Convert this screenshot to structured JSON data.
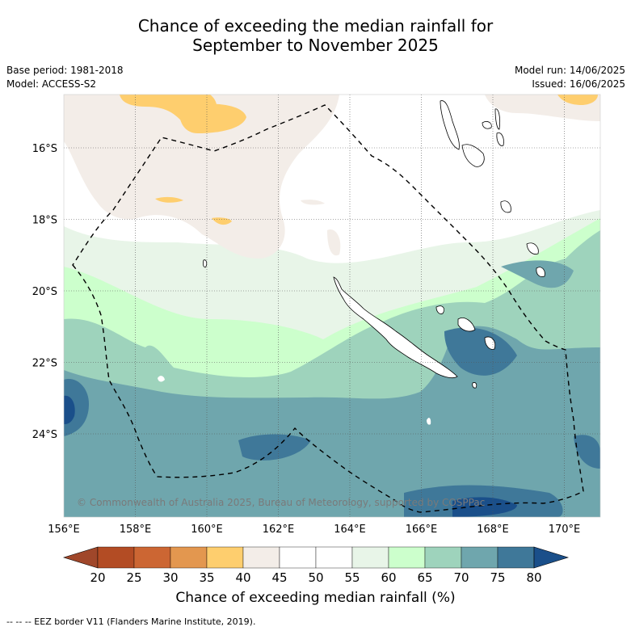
{
  "title_line1": "Chance of exceeding the median rainfall for",
  "title_line2": "September to November 2025",
  "base_period": "Base period: 1981-2018",
  "model": "Model: ACCESS-S2",
  "model_run": "Model run: 14/06/2025",
  "issued": "Issued: 16/06/2025",
  "copyright": "© Commonwealth of Australia 2025, Bureau of Meteorology, supported by COSPPac",
  "colorbar_label": "Chance of exceeding median rainfall (%)",
  "footnote": "--  --  -- EEZ border V11 (Flanders Marine Institute, 2019).",
  "chart_data": {
    "type": "heatmap",
    "x_ticks": [
      "156°E",
      "158°E",
      "160°E",
      "162°E",
      "164°E",
      "166°E",
      "168°E",
      "170°E"
    ],
    "y_ticks": [
      "16°S",
      "18°S",
      "20°S",
      "22°S",
      "24°S"
    ],
    "colorbar_ticks": [
      "20",
      "25",
      "30",
      "35",
      "40",
      "45",
      "50",
      "55",
      "60",
      "65",
      "70",
      "75",
      "80"
    ],
    "colors": [
      "#a0472a",
      "#b34c24",
      "#cc6633",
      "#e3974f",
      "#fece6e",
      "#f3ede8",
      "#ffffff",
      "#ffffff",
      "#e8f5e8",
      "#ccffcc",
      "#9ed3bc",
      "#6fa6ad",
      "#3f7899",
      "#1a4f8a"
    ],
    "grid": true
  }
}
